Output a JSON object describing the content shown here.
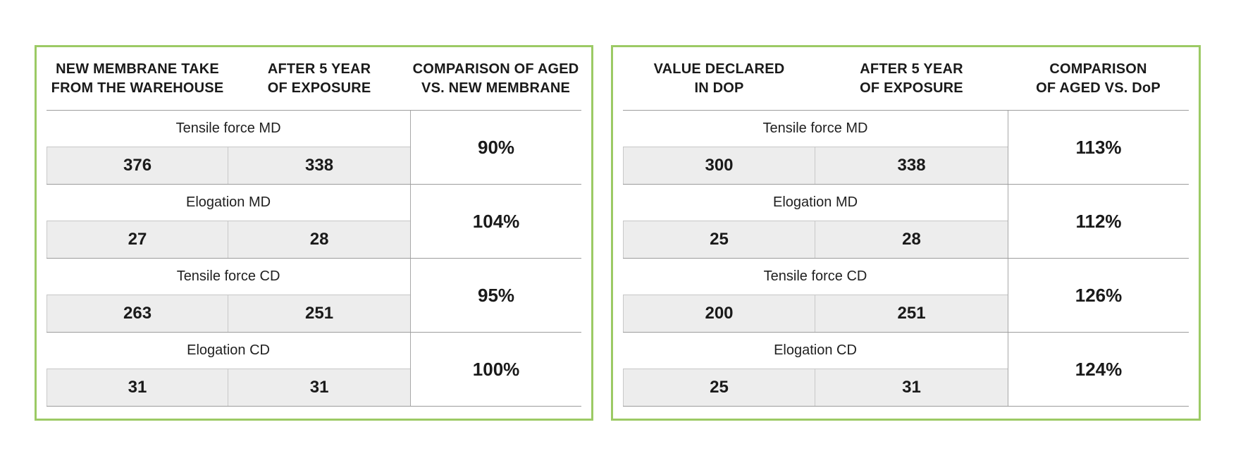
{
  "colors": {
    "panel_border_green": "#9CCA65",
    "value_cell_gray": "#EDEDED",
    "rule_gray": "#9C9C9C",
    "text_black": "#1A1A1A",
    "page_background": "#FFFFFF"
  },
  "tables": {
    "left": {
      "headers": {
        "col1": "NEW MEMBRANE TAKE\nFROM THE WAREHOUSE",
        "col2": "AFTER 5 YEAR\nOF EXPOSURE",
        "col3": "COMPARISON OF AGED\nVS. NEW MEMBRANE"
      },
      "rows": [
        {
          "label": "Tensile force MD",
          "value1": "376",
          "value2": "338",
          "comparison": "90%"
        },
        {
          "label": "Elogation MD",
          "value1": "27",
          "value2": "28",
          "comparison": "104%"
        },
        {
          "label": "Tensile force CD",
          "value1": "263",
          "value2": "251",
          "comparison": "95%"
        },
        {
          "label": "Elogation CD",
          "value1": "31",
          "value2": "31",
          "comparison": "100%"
        }
      ]
    },
    "right": {
      "headers": {
        "col1": "VALUE DECLARED\nIN DOP",
        "col2": "AFTER 5 YEAR\nOF EXPOSURE",
        "col3": "COMPARISON\nOF AGED VS. DoP"
      },
      "rows": [
        {
          "label": "Tensile force MD",
          "value1": "300",
          "value2": "338",
          "comparison": "113%"
        },
        {
          "label": "Elogation MD",
          "value1": "25",
          "value2": "28",
          "comparison": "112%"
        },
        {
          "label": "Tensile force CD",
          "value1": "200",
          "value2": "251",
          "comparison": "126%"
        },
        {
          "label": "Elogation CD",
          "value1": "25",
          "value2": "31",
          "comparison": "124%"
        }
      ]
    }
  },
  "chart_data": [
    {
      "type": "table",
      "title": "Aged vs. new membrane comparison",
      "columns": [
        "NEW MEMBRANE TAKE FROM THE WAREHOUSE",
        "AFTER 5 YEAR OF EXPOSURE",
        "COMPARISON OF AGED VS. NEW MEMBRANE"
      ],
      "rows": [
        {
          "metric": "Tensile force MD",
          "new_membrane": 376,
          "after_5_year": 338,
          "comparison_pct": 90
        },
        {
          "metric": "Elogation MD",
          "new_membrane": 27,
          "after_5_year": 28,
          "comparison_pct": 104
        },
        {
          "metric": "Tensile force CD",
          "new_membrane": 263,
          "after_5_year": 251,
          "comparison_pct": 95
        },
        {
          "metric": "Elogation CD",
          "new_membrane": 31,
          "after_5_year": 31,
          "comparison_pct": 100
        }
      ]
    },
    {
      "type": "table",
      "title": "Aged vs. DoP declared value comparison",
      "columns": [
        "VALUE DECLARED IN DOP",
        "AFTER 5 YEAR OF EXPOSURE",
        "COMPARISON OF AGED VS. DoP"
      ],
      "rows": [
        {
          "metric": "Tensile force MD",
          "value_declared_in_dop": 300,
          "after_5_year": 338,
          "comparison_pct": 113
        },
        {
          "metric": "Elogation MD",
          "value_declared_in_dop": 25,
          "after_5_year": 28,
          "comparison_pct": 112
        },
        {
          "metric": "Tensile force CD",
          "value_declared_in_dop": 200,
          "after_5_year": 251,
          "comparison_pct": 126
        },
        {
          "metric": "Elogation CD",
          "value_declared_in_dop": 25,
          "after_5_year": 31,
          "comparison_pct": 124
        }
      ]
    }
  ]
}
